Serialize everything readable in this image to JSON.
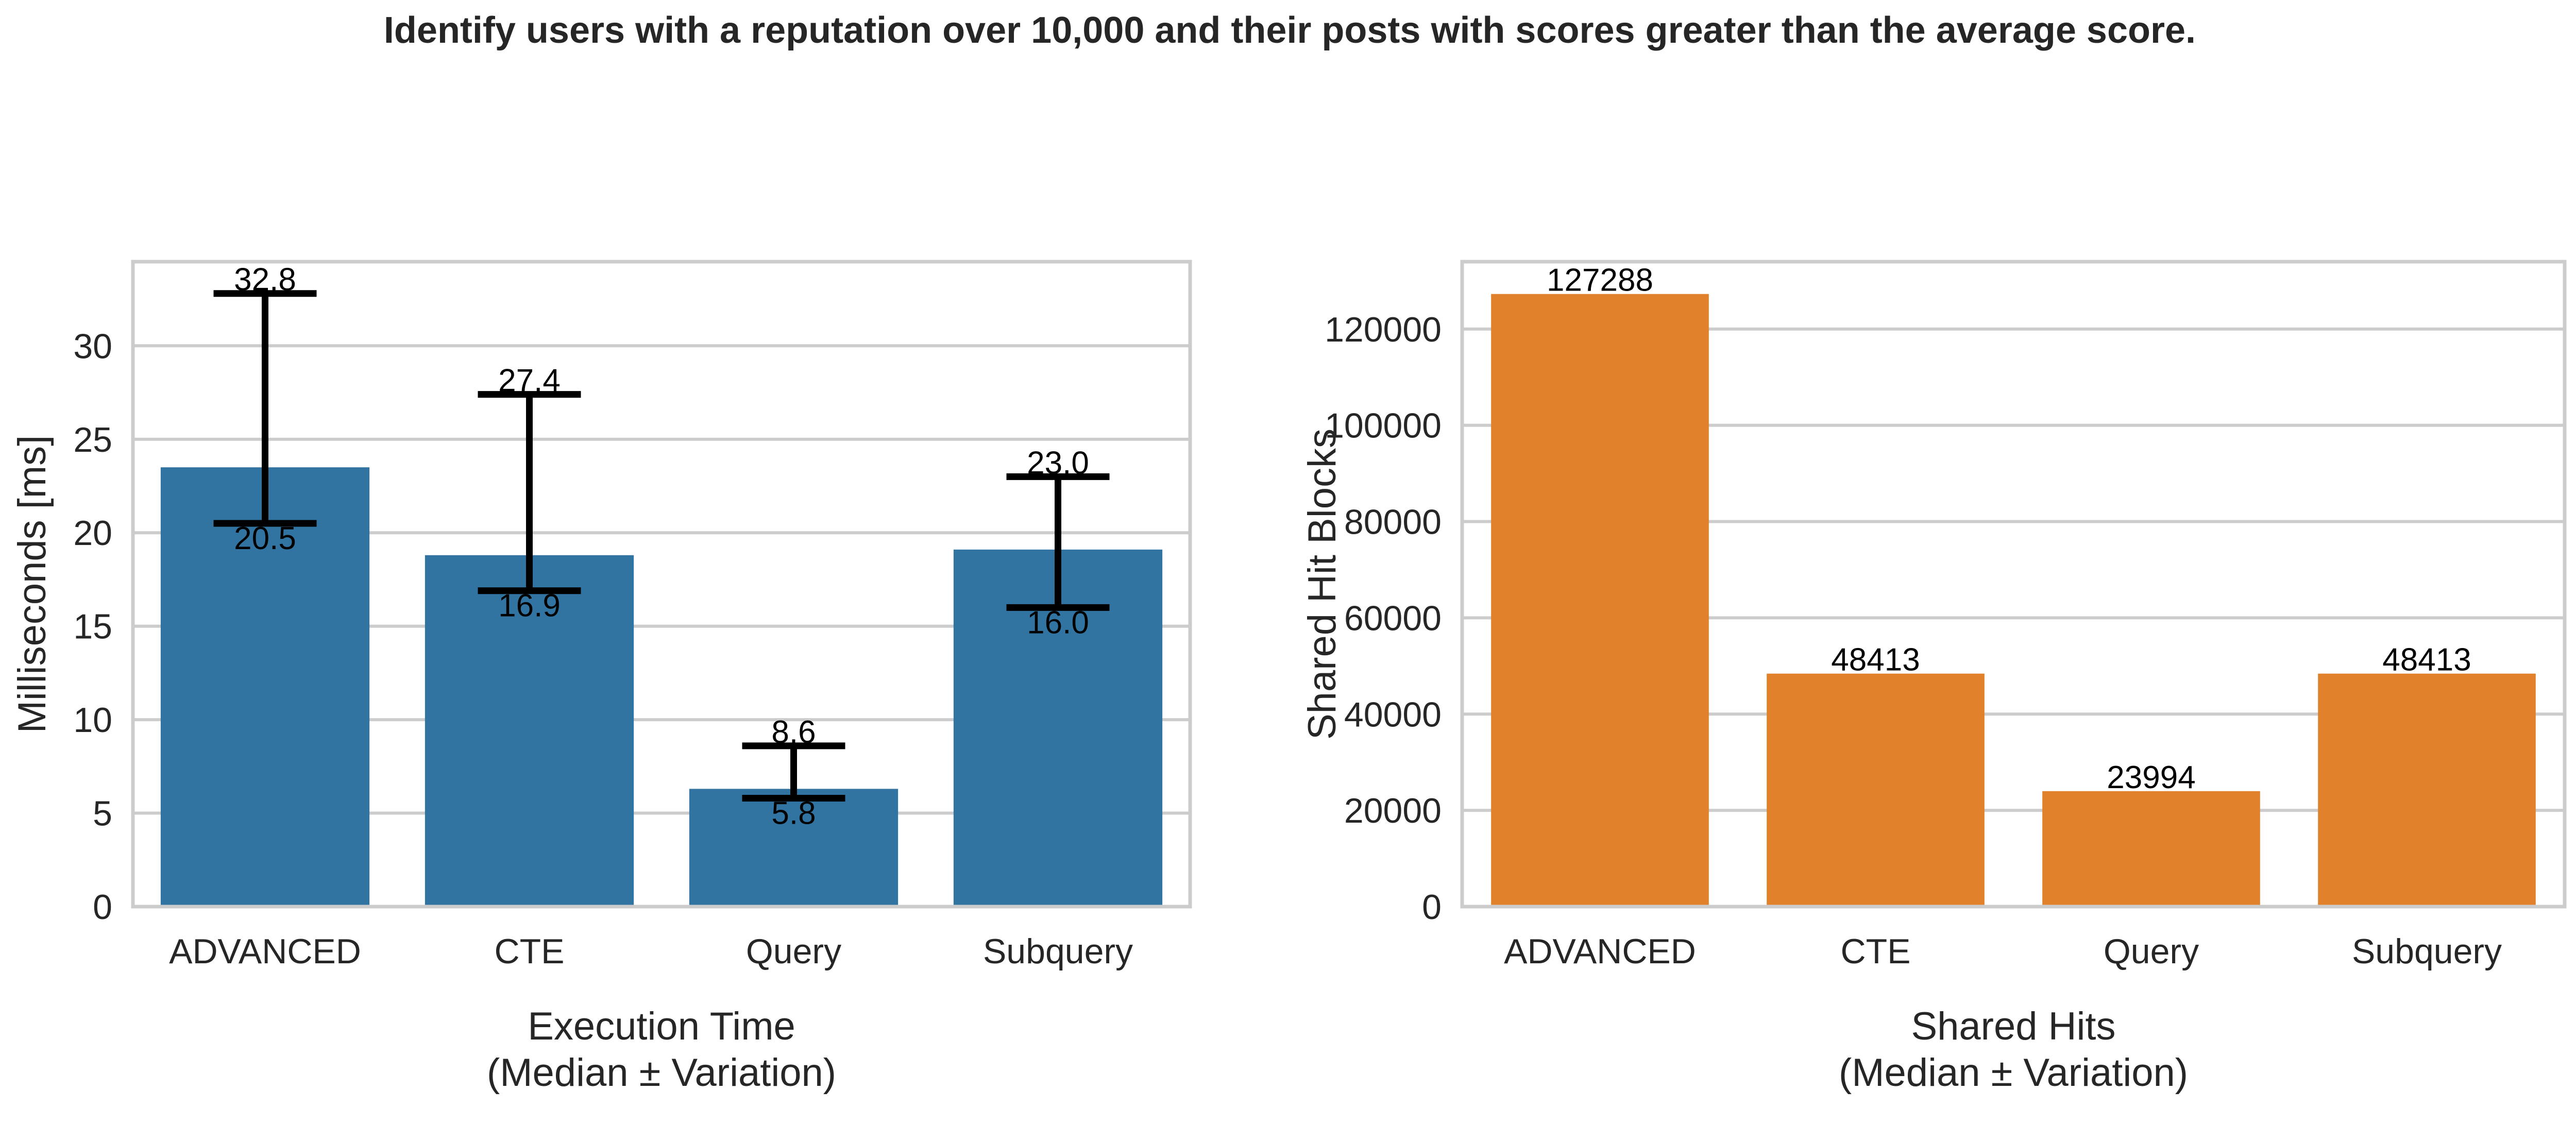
{
  "figure": {
    "title": "Identify users with a reputation over 10,000 and their posts with scores greater than the average score."
  },
  "chart_data": [
    {
      "type": "bar",
      "color": "#3274a1",
      "categories": [
        "ADVANCED",
        "CTE",
        "Query",
        "Subquery"
      ],
      "values": [
        23.5,
        18.8,
        6.3,
        19.1
      ],
      "error_low": [
        20.5,
        16.9,
        5.8,
        16.0
      ],
      "error_high": [
        32.8,
        27.4,
        8.6,
        23.0
      ],
      "error_low_labels": [
        "20.5",
        "16.9",
        "5.8",
        "16.0"
      ],
      "error_high_labels": [
        "32.8",
        "27.4",
        "8.6",
        "23.0"
      ],
      "xlabel_lines": [
        "Execution Time",
        "(Median ± Variation)"
      ],
      "ylabel": "Milliseconds [ms]",
      "ylim": [
        0,
        34.5
      ],
      "yticks": [
        0,
        5,
        10,
        15,
        20,
        25,
        30
      ],
      "grid": true,
      "legend": "none"
    },
    {
      "type": "bar",
      "color": "#e1812c",
      "categories": [
        "ADVANCED",
        "CTE",
        "Query",
        "Subquery"
      ],
      "values": [
        127288,
        48413,
        23994,
        48413
      ],
      "value_labels": [
        "127288",
        "48413",
        "23994",
        "48413"
      ],
      "xlabel_lines": [
        "Shared Hits",
        "(Median ± Variation)"
      ],
      "ylabel": "Shared Hit Blocks",
      "ylim": [
        0,
        134000
      ],
      "yticks": [
        0,
        20000,
        40000,
        60000,
        80000,
        100000,
        120000
      ],
      "grid": true,
      "legend": "none"
    }
  ]
}
